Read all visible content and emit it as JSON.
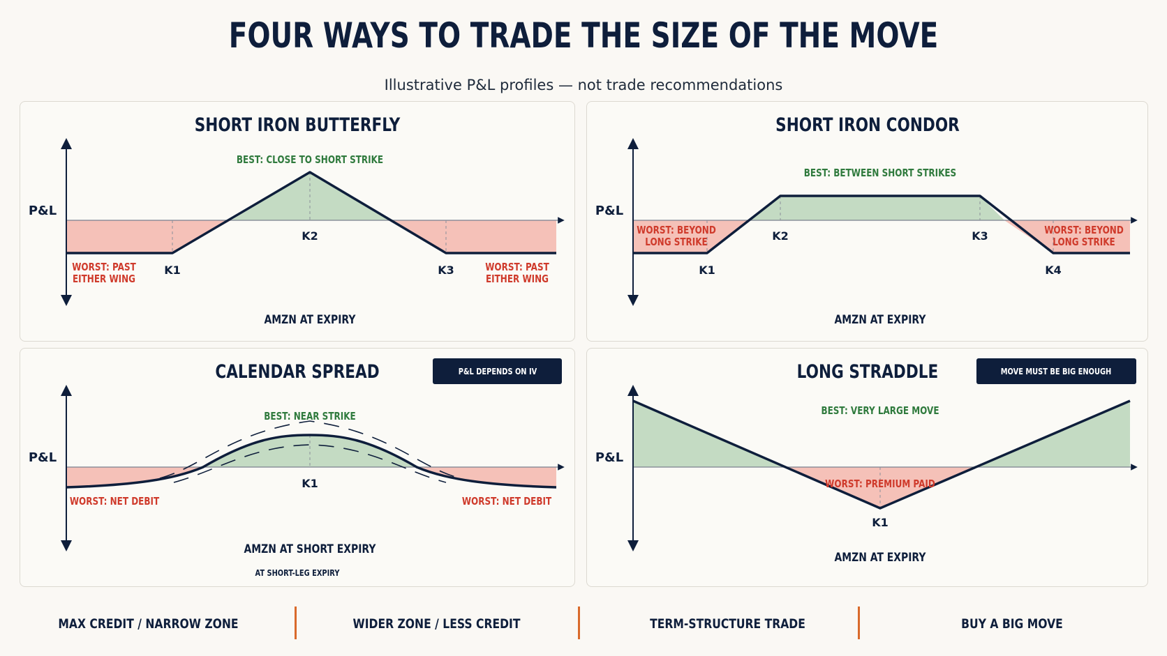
{
  "title": "FOUR WAYS TO TRADE THE SIZE OF THE MOVE",
  "subtitle": "Illustrative P&L profiles — not trade recommendations",
  "colors": {
    "navy": "#0e1e3b",
    "profit_fill": "#c4dbc3",
    "loss_fill": "#f5c1b8",
    "best_text": "#2f7a3d",
    "worst_text": "#cf3a2b",
    "separator": "#d96a2b"
  },
  "panels": [
    {
      "title": "SHORT IRON BUTTERFLY",
      "y_axis_label": "P&L",
      "x_axis_label": "AMZN AT EXPIRY",
      "best_label": "BEST: CLOSE TO SHORT STRIKE",
      "worst_labels": [
        [
          "WORST: PAST",
          "EITHER WING"
        ],
        [
          "WORST: PAST",
          "EITHER WING"
        ]
      ],
      "strikes": [
        "K1",
        "K2",
        "K3"
      ]
    },
    {
      "title": "SHORT IRON CONDOR",
      "y_axis_label": "P&L",
      "x_axis_label": "AMZN AT EXPIRY",
      "best_label": "BEST: BETWEEN SHORT STRIKES",
      "worst_labels": [
        [
          "WORST: BEYOND",
          "LONG STRIKE"
        ],
        [
          "WORST: BEYOND",
          "LONG STRIKE"
        ]
      ],
      "strikes": [
        "K1",
        "K2",
        "K3",
        "K4"
      ]
    },
    {
      "title": "CALENDAR SPREAD",
      "badge": "P&L DEPENDS ON IV",
      "y_axis_label": "P&L",
      "x_axis_label": "AMZN AT SHORT EXPIRY",
      "x_axis_sublabel": "AT SHORT-LEG EXPIRY",
      "best_label": "BEST: NEAR STRIKE",
      "worst_labels": [
        [
          "WORST: NET DEBIT"
        ],
        [
          "WORST: NET DEBIT"
        ]
      ],
      "strikes": [
        "K1"
      ]
    },
    {
      "title": "LONG STRADDLE",
      "badge": "MOVE MUST BE BIG ENOUGH",
      "y_axis_label": "P&L",
      "x_axis_label": "AMZN AT EXPIRY",
      "best_label": "BEST: VERY LARGE MOVE",
      "worst_labels": [
        [
          "WORST: PREMIUM PAID"
        ]
      ],
      "strikes": [
        "K1"
      ]
    }
  ],
  "footer": [
    "MAX CREDIT / NARROW ZONE",
    "WIDER ZONE / LESS CREDIT",
    "TERM-STRUCTURE TRADE",
    "BUY A BIG MOVE"
  ]
}
